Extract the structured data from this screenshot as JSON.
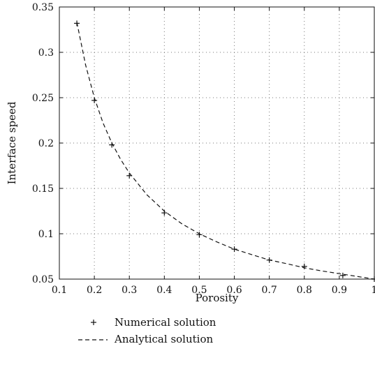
{
  "chart_data": {
    "type": "line",
    "xlabel": "Porosity",
    "ylabel": "Interface speed",
    "xlim": [
      0.1,
      1.0
    ],
    "ylim": [
      0.05,
      0.35
    ],
    "grid": true,
    "legend_position": "bottom-left",
    "x_ticks": [
      0.1,
      0.2,
      0.3,
      0.4,
      0.5,
      0.6,
      0.7,
      0.8,
      0.9,
      1.0
    ],
    "x_tick_labels": [
      "0.1",
      "0.2",
      "0.3",
      "0.4",
      "0.5",
      "0.6",
      "0.7",
      "0.8",
      "0.9",
      "1"
    ],
    "y_ticks": [
      0.05,
      0.1,
      0.15,
      0.2,
      0.25,
      0.3,
      0.35
    ],
    "y_tick_labels": [
      "0.05",
      "0.1",
      "0.15",
      "0.2",
      "0.25",
      "0.3",
      "0.35"
    ],
    "series": [
      {
        "name": "Numerical solution",
        "style": "markers-plus",
        "color": "#111111",
        "x": [
          0.15,
          0.2,
          0.25,
          0.3,
          0.4,
          0.5,
          0.6,
          0.7,
          0.8,
          0.91,
          1.0
        ],
        "y": [
          0.332,
          0.247,
          0.198,
          0.164,
          0.123,
          0.099,
          0.083,
          0.071,
          0.064,
          0.054,
          0.05
        ]
      },
      {
        "name": "Analytical solution",
        "style": "dashed-line",
        "color": "#111111",
        "x": [
          0.15,
          0.175,
          0.2,
          0.225,
          0.25,
          0.275,
          0.3,
          0.35,
          0.4,
          0.45,
          0.5,
          0.55,
          0.6,
          0.65,
          0.7,
          0.75,
          0.8,
          0.85,
          0.9,
          0.95,
          1.0
        ],
        "y": [
          0.333,
          0.286,
          0.25,
          0.222,
          0.2,
          0.182,
          0.167,
          0.143,
          0.125,
          0.111,
          0.1,
          0.091,
          0.083,
          0.077,
          0.071,
          0.067,
          0.0625,
          0.059,
          0.056,
          0.053,
          0.05
        ]
      }
    ]
  }
}
